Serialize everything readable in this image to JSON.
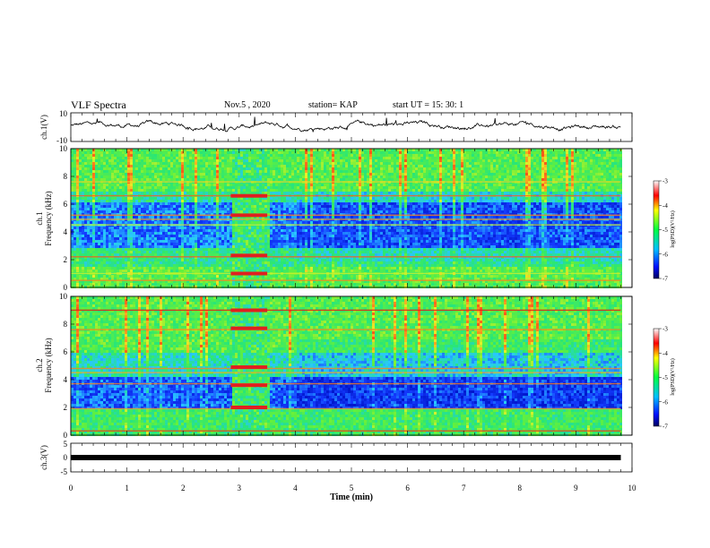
{
  "header": {
    "title": "VLF Spectra",
    "date": "Nov.5 , 2020",
    "station": "station= KAP",
    "start": "start UT = 15: 30: 1"
  },
  "chart_data": [
    {
      "type": "line",
      "ylabel": "ch.1(V)",
      "ylim": [
        -10,
        10
      ],
      "yticks": [
        "10",
        "-10"
      ],
      "xlim": [
        0,
        10
      ],
      "description_level": "noisy waveform around ~1 V"
    },
    {
      "type": "heatmap",
      "ylabel_line1": "ch.1",
      "ylabel_line2": "Frequency (kHz)",
      "ylim": [
        0,
        10
      ],
      "yticks": [
        "0",
        "2",
        "4",
        "6",
        "8",
        "10"
      ],
      "xlim": [
        0,
        10
      ],
      "data_extent_x": [
        0,
        9.8
      ],
      "burst_interval_min": [
        2.85,
        3.5
      ],
      "colorbar": {
        "label": "log(PSD)(V²/Hz)",
        "range": [
          -7,
          -3
        ],
        "ticks": [
          "-3",
          "-4",
          "-5",
          "-6",
          "-7"
        ]
      }
    },
    {
      "type": "heatmap",
      "ylabel_line1": "ch.2",
      "ylabel_line2": "Frequency (kHz)",
      "ylim": [
        0,
        10
      ],
      "yticks": [
        "0",
        "2",
        "4",
        "6",
        "8",
        "10"
      ],
      "xlim": [
        0,
        10
      ],
      "data_extent_x": [
        0,
        9.8
      ],
      "burst_interval_min": [
        2.85,
        3.5
      ],
      "colorbar": {
        "label": "log(PSD)(V²/Hz)",
        "range": [
          -7,
          -3
        ],
        "ticks": [
          "-3",
          "-4",
          "-5",
          "-6",
          "-7"
        ]
      }
    },
    {
      "type": "line",
      "ylabel": "ch.3(V)",
      "ylim": [
        -5,
        5
      ],
      "yticks": [
        "5",
        "0",
        "-5"
      ],
      "xlim": [
        0,
        10
      ],
      "xlabel": "Time (min)",
      "xticks": [
        "0",
        "1",
        "2",
        "3",
        "4",
        "5",
        "6",
        "7",
        "8",
        "9",
        "10"
      ],
      "level": 0
    }
  ],
  "palette": {
    "blue": "#1030e0",
    "cyan": "#30d0ff",
    "green": "#40e060",
    "yellow": "#f0f030",
    "red": "#e02020"
  }
}
